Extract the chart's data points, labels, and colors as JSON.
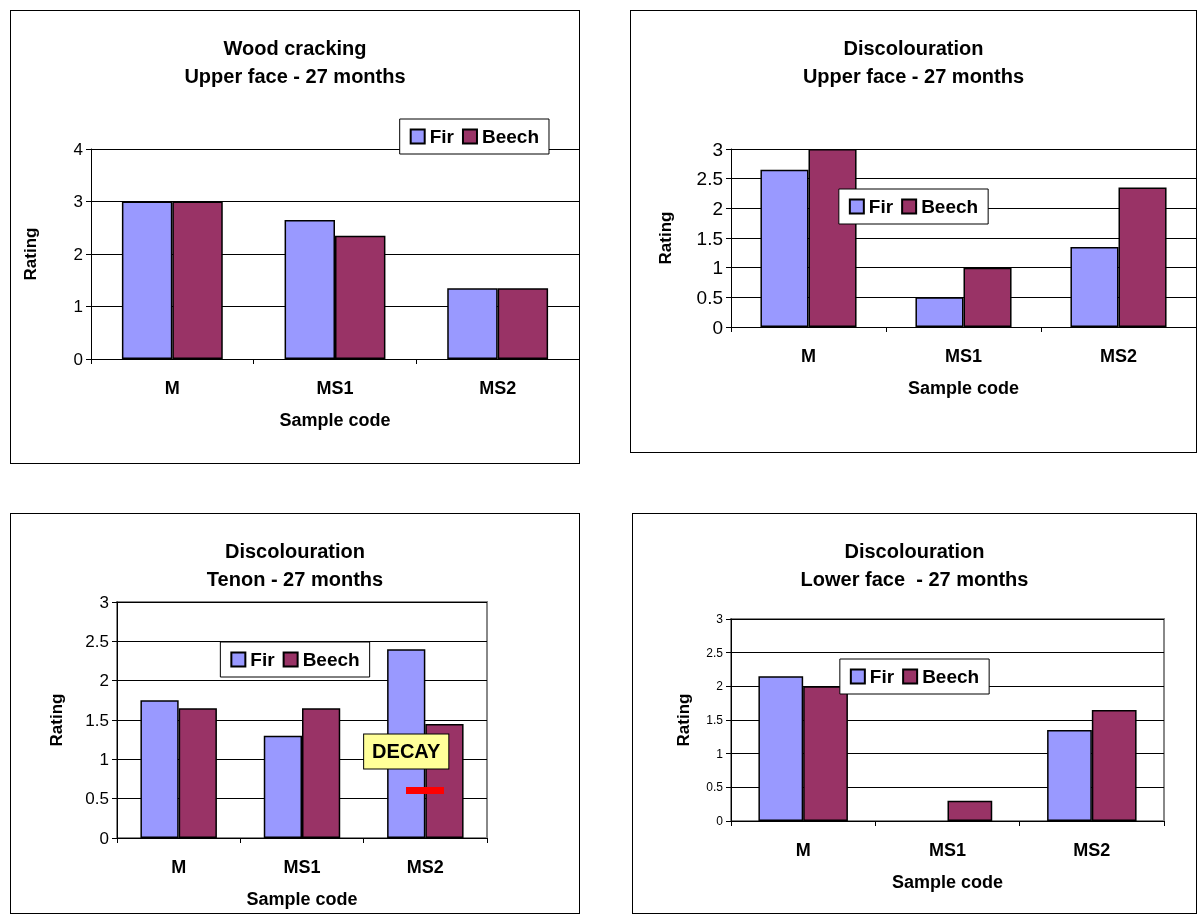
{
  "chart_data": [
    {
      "type": "bar",
      "title": "Wood cracking",
      "subtitle": "Upper face - 27 months",
      "xlabel": "Sample code",
      "ylabel": "Rating",
      "categories": [
        "M",
        "MS1",
        "MS2"
      ],
      "series": [
        {
          "name": "Fir",
          "color": "#9999ff",
          "values": [
            3,
            2.65,
            1.35
          ]
        },
        {
          "name": "Beech",
          "color": "#993366",
          "values": [
            3,
            2.35,
            1.35
          ]
        }
      ],
      "ylim": [
        0,
        4
      ],
      "yticks": [
        0,
        1,
        2,
        3,
        4
      ],
      "grid": "y",
      "legend": "top right"
    },
    {
      "type": "bar",
      "title": "Discolouration",
      "subtitle": "Upper face - 27 months",
      "xlabel": "Sample code",
      "ylabel": "Rating",
      "categories": [
        "M",
        "MS1",
        "MS2"
      ],
      "series": [
        {
          "name": "Fir",
          "color": "#9999ff",
          "values": [
            2.65,
            0.5,
            1.35
          ]
        },
        {
          "name": "Beech",
          "color": "#993366",
          "values": [
            3,
            1,
            2.35
          ]
        }
      ],
      "ylim": [
        0,
        3
      ],
      "yticks": [
        0,
        0.5,
        1,
        1.5,
        2,
        2.5,
        3
      ],
      "grid": "y",
      "legend": "top"
    },
    {
      "type": "bar",
      "title": "Discolouration",
      "subtitle": "Tenon - 27 months",
      "xlabel": "Sample code",
      "ylabel": "Rating",
      "categories": [
        "M",
        "MS1",
        "MS2"
      ],
      "series": [
        {
          "name": "Fir",
          "color": "#9999ff",
          "values": [
            1.75,
            1.3,
            2.4
          ]
        },
        {
          "name": "Beech",
          "color": "#993366",
          "values": [
            1.65,
            1.65,
            1.45
          ]
        }
      ],
      "ylim": [
        0,
        3
      ],
      "yticks": [
        0,
        0.5,
        1,
        1.5,
        2,
        2.5,
        3
      ],
      "grid": "y",
      "legend": "top",
      "annotations": [
        {
          "text": "DECAY",
          "x": "MS2",
          "y": 1.1
        }
      ]
    },
    {
      "type": "bar",
      "title": "Discolouration",
      "subtitle": "Lower face  - 27 months",
      "xlabel": "Sample code",
      "ylabel": "Rating",
      "categories": [
        "M",
        "MS1",
        "MS2"
      ],
      "series": [
        {
          "name": "Fir",
          "color": "#9999ff",
          "values": [
            2.15,
            null,
            1.35
          ]
        },
        {
          "name": "Beech",
          "color": "#993366",
          "values": [
            2,
            0.3,
            1.65
          ]
        }
      ],
      "ylim": [
        0,
        3
      ],
      "yticks": [
        0,
        0.5,
        1,
        1.5,
        2,
        2.5,
        3
      ],
      "grid": "y",
      "legend": "top"
    }
  ]
}
